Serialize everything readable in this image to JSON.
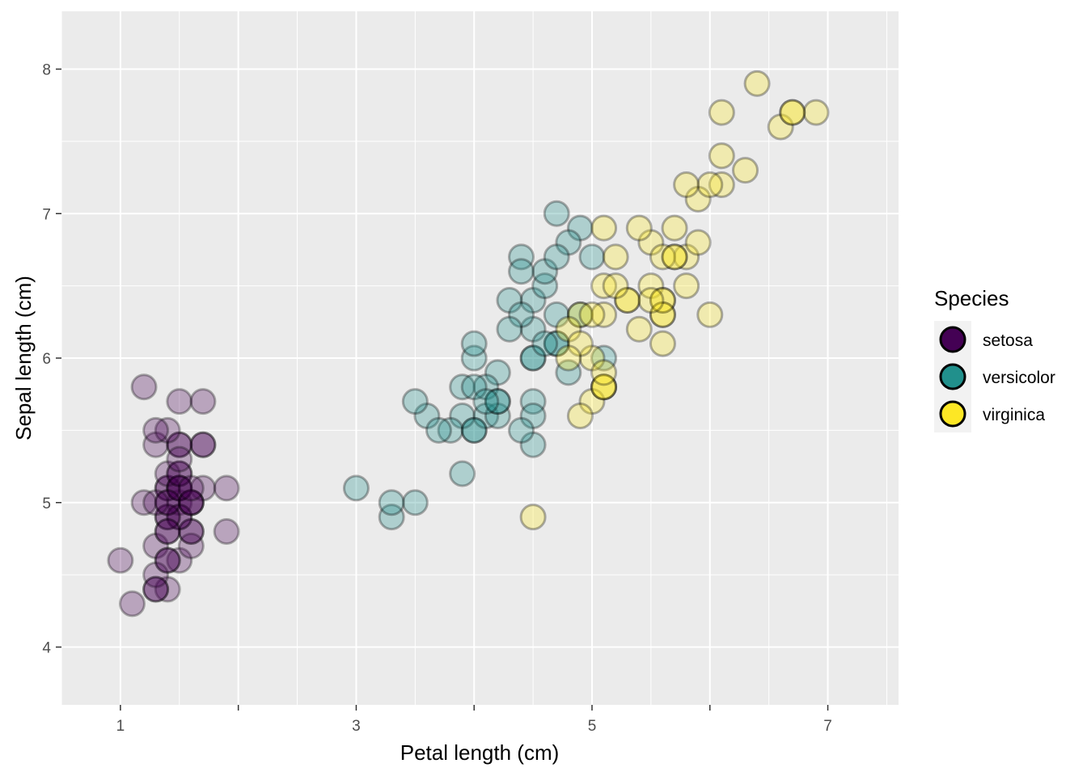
{
  "chart_data": {
    "type": "scatter",
    "title": "",
    "xlabel": "Petal length (cm)",
    "ylabel": "Sepal length (cm)",
    "xlim": [
      0.5,
      7.6
    ],
    "ylim": [
      3.6,
      8.4
    ],
    "x_ticks": [
      1,
      3,
      5,
      7
    ],
    "y_ticks": [
      4,
      5,
      6,
      7,
      8
    ],
    "grid": true,
    "legend_position": "right",
    "legend_title": "Species",
    "series": [
      {
        "name": "setosa",
        "color": "#440154",
        "points": [
          [
            1.4,
            5.1
          ],
          [
            1.4,
            4.9
          ],
          [
            1.3,
            4.7
          ],
          [
            1.5,
            4.6
          ],
          [
            1.4,
            5.0
          ],
          [
            1.7,
            5.4
          ],
          [
            1.4,
            4.6
          ],
          [
            1.5,
            5.0
          ],
          [
            1.4,
            4.4
          ],
          [
            1.5,
            4.9
          ],
          [
            1.5,
            5.4
          ],
          [
            1.6,
            4.8
          ],
          [
            1.4,
            4.8
          ],
          [
            1.1,
            4.3
          ],
          [
            1.2,
            5.8
          ],
          [
            1.5,
            5.7
          ],
          [
            1.3,
            5.4
          ],
          [
            1.4,
            5.1
          ],
          [
            1.7,
            5.7
          ],
          [
            1.5,
            5.1
          ],
          [
            1.7,
            5.4
          ],
          [
            1.5,
            5.1
          ],
          [
            1.0,
            4.6
          ],
          [
            1.7,
            5.1
          ],
          [
            1.9,
            4.8
          ],
          [
            1.6,
            5.0
          ],
          [
            1.6,
            5.0
          ],
          [
            1.5,
            5.2
          ],
          [
            1.4,
            5.2
          ],
          [
            1.6,
            4.7
          ],
          [
            1.6,
            4.8
          ],
          [
            1.5,
            5.4
          ],
          [
            1.5,
            5.2
          ],
          [
            1.4,
            5.5
          ],
          [
            1.5,
            4.9
          ],
          [
            1.2,
            5.0
          ],
          [
            1.3,
            5.5
          ],
          [
            1.4,
            4.9
          ],
          [
            1.3,
            4.4
          ],
          [
            1.5,
            5.1
          ],
          [
            1.3,
            5.0
          ],
          [
            1.3,
            4.5
          ],
          [
            1.3,
            4.4
          ],
          [
            1.6,
            5.0
          ],
          [
            1.9,
            5.1
          ],
          [
            1.4,
            4.8
          ],
          [
            1.6,
            5.1
          ],
          [
            1.4,
            4.6
          ],
          [
            1.5,
            5.3
          ],
          [
            1.4,
            5.0
          ]
        ]
      },
      {
        "name": "versicolor",
        "color": "#21908C",
        "points": [
          [
            4.7,
            7.0
          ],
          [
            4.5,
            6.4
          ],
          [
            4.9,
            6.9
          ],
          [
            4.0,
            5.5
          ],
          [
            4.6,
            6.5
          ],
          [
            4.5,
            5.7
          ],
          [
            4.7,
            6.3
          ],
          [
            3.3,
            4.9
          ],
          [
            4.6,
            6.6
          ],
          [
            3.9,
            5.2
          ],
          [
            3.5,
            5.0
          ],
          [
            4.2,
            5.9
          ],
          [
            4.0,
            6.0
          ],
          [
            4.7,
            6.1
          ],
          [
            3.6,
            5.6
          ],
          [
            4.4,
            6.7
          ],
          [
            4.5,
            5.6
          ],
          [
            4.1,
            5.8
          ],
          [
            4.5,
            6.2
          ],
          [
            3.9,
            5.6
          ],
          [
            4.8,
            5.9
          ],
          [
            4.0,
            6.1
          ],
          [
            4.9,
            6.3
          ],
          [
            4.7,
            6.1
          ],
          [
            4.3,
            6.4
          ],
          [
            4.4,
            6.6
          ],
          [
            4.8,
            6.8
          ],
          [
            5.0,
            6.7
          ],
          [
            4.5,
            6.0
          ],
          [
            3.5,
            5.7
          ],
          [
            3.8,
            5.5
          ],
          [
            3.7,
            5.5
          ],
          [
            3.9,
            5.8
          ],
          [
            5.1,
            6.0
          ],
          [
            4.5,
            5.4
          ],
          [
            4.5,
            6.0
          ],
          [
            4.7,
            6.7
          ],
          [
            4.4,
            6.3
          ],
          [
            4.1,
            5.6
          ],
          [
            4.0,
            5.5
          ],
          [
            4.4,
            5.5
          ],
          [
            4.6,
            6.1
          ],
          [
            4.0,
            5.8
          ],
          [
            3.3,
            5.0
          ],
          [
            4.2,
            5.6
          ],
          [
            4.2,
            5.7
          ],
          [
            4.2,
            5.7
          ],
          [
            4.3,
            6.2
          ],
          [
            3.0,
            5.1
          ],
          [
            4.1,
            5.7
          ]
        ]
      },
      {
        "name": "virginica",
        "color": "#FDE725",
        "points": [
          [
            6.0,
            6.3
          ],
          [
            5.1,
            5.8
          ],
          [
            5.9,
            7.1
          ],
          [
            5.6,
            6.3
          ],
          [
            5.8,
            6.5
          ],
          [
            6.6,
            7.6
          ],
          [
            4.5,
            4.9
          ],
          [
            6.3,
            7.3
          ],
          [
            5.8,
            6.7
          ],
          [
            6.1,
            7.2
          ],
          [
            5.1,
            6.5
          ],
          [
            5.3,
            6.4
          ],
          [
            5.5,
            6.8
          ],
          [
            5.0,
            5.7
          ],
          [
            5.1,
            5.8
          ],
          [
            5.3,
            6.4
          ],
          [
            5.5,
            6.5
          ],
          [
            6.7,
            7.7
          ],
          [
            6.9,
            7.7
          ],
          [
            5.0,
            6.0
          ],
          [
            5.7,
            6.9
          ],
          [
            4.9,
            5.6
          ],
          [
            6.7,
            7.7
          ],
          [
            4.9,
            6.3
          ],
          [
            5.7,
            6.7
          ],
          [
            6.0,
            7.2
          ],
          [
            4.8,
            6.2
          ],
          [
            4.9,
            6.1
          ],
          [
            5.6,
            6.4
          ],
          [
            5.8,
            7.2
          ],
          [
            6.1,
            7.4
          ],
          [
            6.4,
            7.9
          ],
          [
            5.6,
            6.4
          ],
          [
            5.1,
            6.3
          ],
          [
            5.6,
            6.1
          ],
          [
            6.1,
            7.7
          ],
          [
            5.6,
            6.3
          ],
          [
            5.5,
            6.4
          ],
          [
            4.8,
            6.0
          ],
          [
            5.4,
            6.9
          ],
          [
            5.6,
            6.7
          ],
          [
            5.1,
            6.9
          ],
          [
            5.1,
            5.8
          ],
          [
            5.9,
            6.8
          ],
          [
            5.7,
            6.7
          ],
          [
            5.2,
            6.7
          ],
          [
            5.0,
            6.3
          ],
          [
            5.2,
            6.5
          ],
          [
            5.4,
            6.2
          ],
          [
            5.1,
            5.9
          ]
        ]
      }
    ]
  }
}
